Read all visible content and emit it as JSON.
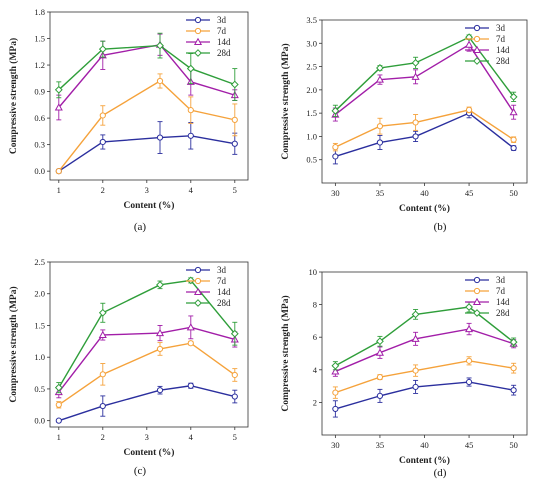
{
  "colors": {
    "3d": "#2b2f9e",
    "7d": "#f5a23b",
    "14d": "#a21ea8",
    "28d": "#2f9e3a"
  },
  "chart_data": [
    {
      "type": "line",
      "caption": "(a)",
      "xlabel": "Content (%)",
      "ylabel": "Compressive strength (MPa)",
      "xlim": [
        0.8,
        5.3
      ],
      "ylim": [
        -0.1,
        1.8
      ],
      "xticks": [
        "1",
        "2",
        "3",
        "4",
        "5"
      ],
      "xtick_values": [
        1,
        2,
        3,
        4,
        5
      ],
      "yticks": [
        "0.0",
        "0.3",
        "0.6",
        "0.9",
        "1.2",
        "1.5",
        "1.8"
      ],
      "ytick_values": [
        0,
        0.3,
        0.6,
        0.9,
        1.2,
        1.5,
        1.8
      ],
      "x": [
        1,
        2,
        3.3,
        4,
        5
      ],
      "legend": "top-right",
      "series": [
        {
          "name": "3d",
          "values": [
            0.0,
            0.33,
            0.38,
            0.4,
            0.31
          ],
          "errors": [
            0.02,
            0.08,
            0.18,
            0.15,
            0.12
          ]
        },
        {
          "name": "7d",
          "values": [
            0.0,
            0.63,
            1.02,
            0.69,
            0.58
          ],
          "errors": [
            0.02,
            0.11,
            0.08,
            0.15,
            0.18
          ]
        },
        {
          "name": "14d",
          "values": [
            0.72,
            1.31,
            1.43,
            1.01,
            0.86
          ],
          "errors": [
            0.14,
            0.16,
            0.12,
            0.15,
            0.06
          ]
        },
        {
          "name": "28d",
          "values": [
            0.92,
            1.38,
            1.42,
            1.16,
            0.98
          ],
          "errors": [
            0.09,
            0.09,
            0.14,
            0.17,
            0.18
          ]
        }
      ]
    },
    {
      "type": "line",
      "caption": "(b)",
      "xlabel": "Content (%)",
      "ylabel": "Compressive strength (MPa)",
      "xlim": [
        28.5,
        51.5
      ],
      "ylim": [
        0.0,
        3.5
      ],
      "xticks": [
        "30",
        "35",
        "40",
        "45",
        "50"
      ],
      "xtick_values": [
        30,
        35,
        40,
        45,
        50
      ],
      "yticks": [
        "0.5",
        "1.0",
        "1.5",
        "2.0",
        "2.5",
        "3.0",
        "3.5"
      ],
      "ytick_values": [
        0.5,
        1.0,
        1.5,
        2.0,
        2.5,
        3.0,
        3.5
      ],
      "x": [
        30,
        35,
        39,
        45,
        50
      ],
      "legend": "top-right",
      "series": [
        {
          "name": "3d",
          "values": [
            0.57,
            0.87,
            1.0,
            1.5,
            0.75
          ],
          "errors": [
            0.16,
            0.15,
            0.11,
            0.1,
            0.05
          ]
        },
        {
          "name": "7d",
          "values": [
            0.77,
            1.22,
            1.3,
            1.57,
            0.93
          ],
          "errors": [
            0.08,
            0.17,
            0.17,
            0.06,
            0.06
          ]
        },
        {
          "name": "14d",
          "values": [
            1.47,
            2.22,
            2.28,
            2.97,
            1.52
          ],
          "errors": [
            0.14,
            0.1,
            0.15,
            0.14,
            0.15
          ]
        },
        {
          "name": "28d",
          "values": [
            1.55,
            2.47,
            2.58,
            3.13,
            1.85
          ],
          "errors": [
            0.12,
            0.05,
            0.12,
            0.05,
            0.1
          ]
        }
      ]
    },
    {
      "type": "line",
      "caption": "(c)",
      "xlabel": "Content (%)",
      "ylabel": "Compressive strength (MPa)",
      "xlim": [
        0.8,
        5.3
      ],
      "ylim": [
        -0.1,
        2.5
      ],
      "xticks": [
        "1",
        "2",
        "3",
        "4",
        "5"
      ],
      "xtick_values": [
        1,
        2,
        3,
        4,
        5
      ],
      "yticks": [
        "0.0",
        "0.5",
        "1.0",
        "1.5",
        "2.0",
        "2.5"
      ],
      "ytick_values": [
        0,
        0.5,
        1.0,
        1.5,
        2.0,
        2.5
      ],
      "x": [
        1,
        2,
        3.3,
        4,
        5
      ],
      "legend": "top-right",
      "series": [
        {
          "name": "3d",
          "values": [
            0.0,
            0.23,
            0.48,
            0.55,
            0.38
          ],
          "errors": [
            0.02,
            0.16,
            0.06,
            0.04,
            0.1
          ]
        },
        {
          "name": "7d",
          "values": [
            0.25,
            0.73,
            1.13,
            1.22,
            0.72
          ],
          "errors": [
            0.05,
            0.17,
            0.1,
            0.03,
            0.1
          ]
        },
        {
          "name": "14d",
          "values": [
            0.45,
            1.35,
            1.38,
            1.47,
            1.28
          ],
          "errors": [
            0.09,
            0.08,
            0.12,
            0.18,
            0.12
          ]
        },
        {
          "name": "28d",
          "values": [
            0.52,
            1.7,
            2.14,
            2.21,
            1.37
          ],
          "errors": [
            0.08,
            0.15,
            0.06,
            0.04,
            0.18
          ]
        }
      ]
    },
    {
      "type": "line",
      "caption": "(d)",
      "xlabel": "Content (%)",
      "ylabel": "Compressive strength (MPa)",
      "xlim": [
        28.5,
        51.5
      ],
      "ylim": [
        0.0,
        10.0
      ],
      "xticks": [
        "30",
        "35",
        "40",
        "45",
        "50"
      ],
      "xtick_values": [
        30,
        35,
        40,
        45,
        50
      ],
      "yticks": [
        "2",
        "4",
        "6",
        "8",
        "10"
      ],
      "ytick_values": [
        2,
        4,
        6,
        8,
        10
      ],
      "x": [
        30,
        35,
        39,
        45,
        50
      ],
      "legend": "top-right",
      "series": [
        {
          "name": "3d",
          "values": [
            1.6,
            2.4,
            2.95,
            3.25,
            2.75
          ],
          "errors": [
            0.5,
            0.4,
            0.4,
            0.25,
            0.3
          ]
        },
        {
          "name": "7d",
          "values": [
            2.6,
            3.55,
            3.95,
            4.55,
            4.1
          ],
          "errors": [
            0.35,
            0.15,
            0.35,
            0.25,
            0.3
          ]
        },
        {
          "name": "14d",
          "values": [
            3.9,
            5.05,
            5.9,
            6.5,
            5.6
          ],
          "errors": [
            0.3,
            0.35,
            0.4,
            0.35,
            0.25
          ]
        },
        {
          "name": "28d",
          "values": [
            4.25,
            5.75,
            7.4,
            7.85,
            5.7
          ],
          "errors": [
            0.25,
            0.3,
            0.3,
            0.3,
            0.25
          ]
        }
      ]
    }
  ]
}
